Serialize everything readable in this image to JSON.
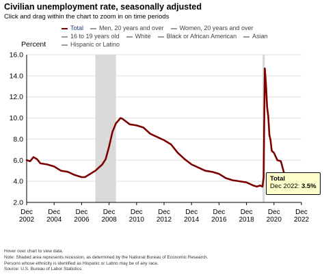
{
  "header": {
    "title": "Civilian unemployment rate, seasonally adjusted",
    "subtitle": "Click and drag within the chart to zoom in on time periods"
  },
  "legend": {
    "items": [
      {
        "label": "Total",
        "color": "#7b0000",
        "active": true
      },
      {
        "label": "Men, 20 years and over",
        "color": "#999999",
        "active": false
      },
      {
        "label": "Women, 20 years and over",
        "color": "#999999",
        "active": false
      },
      {
        "label": "16 to 19 years old",
        "color": "#999999",
        "active": false
      },
      {
        "label": "White",
        "color": "#999999",
        "active": false
      },
      {
        "label": "Black or African American",
        "color": "#999999",
        "active": false
      },
      {
        "label": "Asian",
        "color": "#999999",
        "active": false
      },
      {
        "label": "Hispanic or Latino",
        "color": "#999999",
        "active": false
      }
    ]
  },
  "tooltip": {
    "title": "Total",
    "label": "Dec 2022:",
    "value": "3.5%"
  },
  "footnotes": [
    "Hover over chart to view data.",
    "Note: Shaded area represents recession, as determined by the National Bureau of Economic Research.",
    "Persons whose ethnicity is identified as Hispanic or Latino may be of any race.",
    "Source: U.S. Bureau of Labor Statistics."
  ],
  "chart_data": {
    "type": "line",
    "title": "Civilian unemployment rate, seasonally adjusted",
    "ylabel": "Percent",
    "xlabel": "",
    "ylim": [
      2.0,
      16.0
    ],
    "yticks": [
      "2.0",
      "4.0",
      "6.0",
      "8.0",
      "10.0",
      "12.0",
      "14.0",
      "16.0"
    ],
    "xlim": [
      "Dec 2002",
      "Dec 2022"
    ],
    "xticks": [
      {
        "month": "Dec",
        "year": "2002"
      },
      {
        "month": "Dec",
        "year": "2004"
      },
      {
        "month": "Dec",
        "year": "2006"
      },
      {
        "month": "Dec",
        "year": "2008"
      },
      {
        "month": "Dec",
        "year": "2010"
      },
      {
        "month": "Dec",
        "year": "2012"
      },
      {
        "month": "Dec",
        "year": "2014"
      },
      {
        "month": "Dec",
        "year": "2016"
      },
      {
        "month": "Dec",
        "year": "2018"
      },
      {
        "month": "Dec",
        "year": "2020"
      },
      {
        "month": "Dec",
        "year": "2022"
      }
    ],
    "grid": true,
    "recessions": [
      {
        "start": "Dec 2007",
        "end": "Jun 2009"
      },
      {
        "start": "Feb 2020",
        "end": "Apr 2020"
      }
    ],
    "recession_color": "#d9d9d9",
    "series": [
      {
        "name": "Total",
        "color": "#7b0000",
        "points": [
          [
            "Dec 2002",
            6.0
          ],
          [
            "Mar 2003",
            5.9
          ],
          [
            "Jun 2003",
            6.3
          ],
          [
            "Sep 2003",
            6.1
          ],
          [
            "Dec 2003",
            5.7
          ],
          [
            "Jun 2004",
            5.6
          ],
          [
            "Dec 2004",
            5.4
          ],
          [
            "Jun 2005",
            5.0
          ],
          [
            "Dec 2005",
            4.9
          ],
          [
            "Jun 2006",
            4.6
          ],
          [
            "Dec 2006",
            4.4
          ],
          [
            "Mar 2007",
            4.4
          ],
          [
            "Jun 2007",
            4.6
          ],
          [
            "Dec 2007",
            5.0
          ],
          [
            "Jun 2008",
            5.6
          ],
          [
            "Sep 2008",
            6.1
          ],
          [
            "Dec 2008",
            7.3
          ],
          [
            "Mar 2009",
            8.7
          ],
          [
            "Jun 2009",
            9.5
          ],
          [
            "Oct 2009",
            10.0
          ],
          [
            "Dec 2009",
            9.9
          ],
          [
            "Jun 2010",
            9.4
          ],
          [
            "Dec 2010",
            9.3
          ],
          [
            "Jun 2011",
            9.1
          ],
          [
            "Dec 2011",
            8.5
          ],
          [
            "Jun 2012",
            8.2
          ],
          [
            "Dec 2012",
            7.9
          ],
          [
            "Jun 2013",
            7.5
          ],
          [
            "Dec 2013",
            6.7
          ],
          [
            "Jun 2014",
            6.1
          ],
          [
            "Dec 2014",
            5.6
          ],
          [
            "Jun 2015",
            5.3
          ],
          [
            "Dec 2015",
            5.0
          ],
          [
            "Jun 2016",
            4.9
          ],
          [
            "Dec 2016",
            4.7
          ],
          [
            "Jun 2017",
            4.3
          ],
          [
            "Dec 2017",
            4.1
          ],
          [
            "Jun 2018",
            4.0
          ],
          [
            "Dec 2018",
            3.9
          ],
          [
            "Jun 2019",
            3.6
          ],
          [
            "Sep 2019",
            3.5
          ],
          [
            "Dec 2019",
            3.6
          ],
          [
            "Feb 2020",
            3.5
          ],
          [
            "Mar 2020",
            4.4
          ],
          [
            "Apr 2020",
            14.7
          ],
          [
            "May 2020",
            13.2
          ],
          [
            "Jun 2020",
            11.0
          ],
          [
            "Jul 2020",
            10.2
          ],
          [
            "Aug 2020",
            8.4
          ],
          [
            "Sep 2020",
            7.9
          ],
          [
            "Oct 2020",
            6.9
          ],
          [
            "Dec 2020",
            6.7
          ],
          [
            "Mar 2021",
            6.0
          ],
          [
            "Jun 2021",
            5.9
          ],
          [
            "Sep 2021",
            4.7
          ],
          [
            "Dec 2021",
            3.9
          ],
          [
            "Mar 2022",
            3.6
          ],
          [
            "Jun 2022",
            3.6
          ],
          [
            "Sep 2022",
            3.5
          ],
          [
            "Oct 2022",
            3.7
          ],
          [
            "Dec 2022",
            3.5
          ]
        ]
      }
    ]
  }
}
